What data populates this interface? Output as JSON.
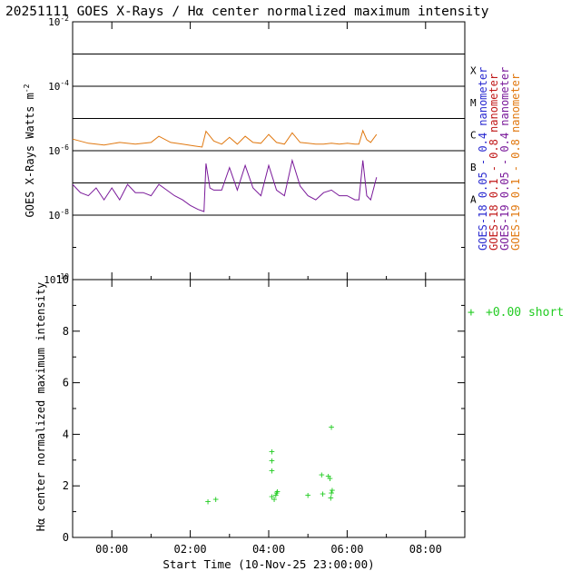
{
  "title": "20251111 GOES X-Rays / Hα center normalized maximum intensity",
  "colors": {
    "goes18_short": "#2a2ad0",
    "goes18_long": "#c01818",
    "goes19_short": "#7a1a9a",
    "goes19_long": "#e07810",
    "halpha": "#22cc22",
    "axis": "#000000"
  },
  "chart_data": [
    {
      "type": "line",
      "ylabel": "GOES X-Rays Watts m",
      "ylabel_sup": "-2",
      "yscale": "log",
      "ylim": [
        1e-10,
        0.01
      ],
      "xlim_hours": [
        -1.0,
        9.0
      ],
      "y_ticks": [
        {
          "base": "10",
          "exp": "-2",
          "value": 0.01
        },
        {
          "base": "10",
          "exp": "-4",
          "value": 0.0001
        },
        {
          "base": "10",
          "exp": "-6",
          "value": 1e-06
        },
        {
          "base": "10",
          "exp": "-8",
          "value": 1e-08
        },
        {
          "base": "10",
          "exp": "-10",
          "value": 1e-10
        }
      ],
      "flare_levels": [
        {
          "label": "X",
          "value": 0.0001
        },
        {
          "label": "M",
          "value": 1e-05
        },
        {
          "label": "C",
          "value": 1e-06
        },
        {
          "label": "B",
          "value": 1e-07
        },
        {
          "label": "A",
          "value": 1e-08
        }
      ],
      "reference_lines": [
        0.001,
        0.0001,
        1e-05,
        1e-06,
        1e-07,
        1e-08
      ],
      "legend": [
        {
          "text": "GOES-18  0.05 - 0.4 nanometer",
          "color_key": "goes18_short"
        },
        {
          "text": "GOES-18  0.1  - 0.8 nanometer",
          "color_key": "goes18_long"
        },
        {
          "text": "GOES-19  0.05 - 0.4 nanometer",
          "color_key": "goes19_short"
        },
        {
          "text": "GOES-19  0.1  - 0.8 nanometer",
          "color_key": "goes19_long"
        }
      ],
      "series": [
        {
          "color_key": "goes19_long",
          "x_hours": [
            -1.0,
            -0.6,
            -0.2,
            0.2,
            0.6,
            1.0,
            1.2,
            1.5,
            1.8,
            2.1,
            2.3,
            2.4,
            2.6,
            2.8,
            3.0,
            3.2,
            3.4,
            3.6,
            3.8,
            4.0,
            4.2,
            4.4,
            4.6,
            4.8,
            5.0,
            5.2,
            5.4,
            5.6,
            5.8,
            6.0,
            6.2,
            6.3,
            6.4,
            6.5,
            6.6,
            6.75
          ],
          "y": [
            2.3e-06,
            1.7e-06,
            1.5e-06,
            1.8e-06,
            1.6e-06,
            1.8e-06,
            2.8e-06,
            1.8e-06,
            1.6e-06,
            1.4e-06,
            1.3e-06,
            4e-06,
            2e-06,
            1.6e-06,
            2.6e-06,
            1.6e-06,
            2.8e-06,
            1.8e-06,
            1.7e-06,
            3.2e-06,
            1.8e-06,
            1.6e-06,
            3.6e-06,
            1.8e-06,
            1.7e-06,
            1.6e-06,
            1.6e-06,
            1.7e-06,
            1.6e-06,
            1.7e-06,
            1.6e-06,
            1.6e-06,
            4.2e-06,
            2.2e-06,
            1.8e-06,
            3.2e-06
          ]
        },
        {
          "color_key": "goes19_short",
          "x_hours": [
            -1.0,
            -0.8,
            -0.6,
            -0.4,
            -0.2,
            0.0,
            0.2,
            0.4,
            0.6,
            0.8,
            1.0,
            1.2,
            1.4,
            1.6,
            1.8,
            2.0,
            2.2,
            2.35,
            2.4,
            2.5,
            2.6,
            2.8,
            3.0,
            3.2,
            3.4,
            3.6,
            3.8,
            4.0,
            4.2,
            4.4,
            4.6,
            4.8,
            5.0,
            5.2,
            5.4,
            5.6,
            5.8,
            6.0,
            6.2,
            6.3,
            6.4,
            6.5,
            6.6,
            6.75
          ],
          "y": [
            9e-08,
            5e-08,
            4e-08,
            7e-08,
            3e-08,
            7e-08,
            3e-08,
            9e-08,
            5e-08,
            5e-08,
            4e-08,
            9e-08,
            6e-08,
            4e-08,
            3e-08,
            2e-08,
            1.5e-08,
            1.3e-08,
            4e-07,
            7e-08,
            6e-08,
            6e-08,
            3e-07,
            6e-08,
            3.5e-07,
            7e-08,
            4e-08,
            3.5e-07,
            6e-08,
            4e-08,
            5e-07,
            8e-08,
            4e-08,
            3e-08,
            5e-08,
            6e-08,
            4e-08,
            4e-08,
            3e-08,
            3e-08,
            5e-07,
            4e-08,
            3e-08,
            1.5e-07
          ]
        }
      ]
    },
    {
      "type": "scatter",
      "ylabel": "Hα center normalized maximum intensity",
      "xlabel": "Start Time (10-Nov-25 23:00:00)",
      "ylim": [
        0,
        10
      ],
      "xlim_hours": [
        -1.0,
        9.0
      ],
      "y_tick_labels": [
        "0",
        "2",
        "4",
        "6",
        "8",
        "10"
      ],
      "x_tick_labels": [
        "00:00",
        "02:00",
        "04:00",
        "06:00",
        "08:00"
      ],
      "x_tick_hours": [
        0,
        2,
        4,
        6,
        8
      ],
      "legend_text": "+0.00 short",
      "legend_marker": "+",
      "marker": "+",
      "points": [
        {
          "x": 2.45,
          "y": 1.4
        },
        {
          "x": 2.65,
          "y": 1.5
        },
        {
          "x": 4.08,
          "y": 3.35
        },
        {
          "x": 4.08,
          "y": 3.0
        },
        {
          "x": 4.08,
          "y": 2.6
        },
        {
          "x": 4.08,
          "y": 1.6
        },
        {
          "x": 4.14,
          "y": 1.5
        },
        {
          "x": 4.18,
          "y": 1.65
        },
        {
          "x": 4.2,
          "y": 1.75
        },
        {
          "x": 4.22,
          "y": 1.8
        },
        {
          "x": 5.0,
          "y": 1.65
        },
        {
          "x": 5.35,
          "y": 2.45
        },
        {
          "x": 5.38,
          "y": 1.7
        },
        {
          "x": 5.52,
          "y": 2.4
        },
        {
          "x": 5.56,
          "y": 2.3
        },
        {
          "x": 5.58,
          "y": 1.55
        },
        {
          "x": 5.6,
          "y": 1.75
        },
        {
          "x": 5.62,
          "y": 1.85
        },
        {
          "x": 5.6,
          "y": 4.3
        }
      ]
    }
  ]
}
